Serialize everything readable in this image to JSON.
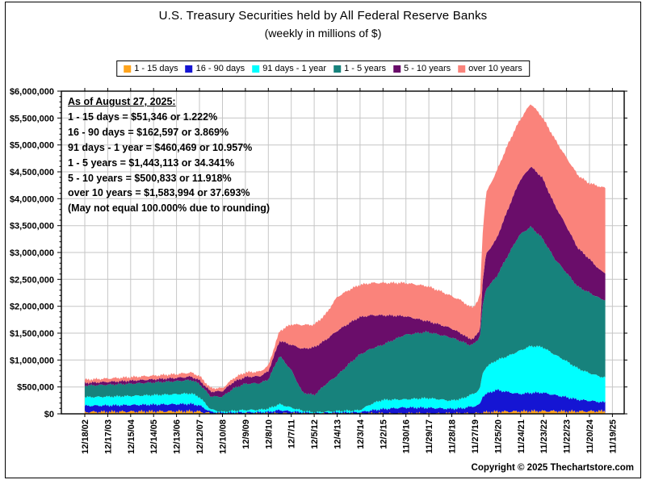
{
  "header": {
    "title": "U.S. Treasury Securities held by All Federal Reserve Banks",
    "subtitle": "(weekly in millions of $)"
  },
  "annotation": {
    "lines": [
      "As of August 27, 2025:",
      "1 - 15 days = $51,346 or 1.222%",
      "16 - 90 days = $162,597 or 3.869%",
      "91 days - 1 year = $460,469 or 10.957%",
      "1 - 5 years = $1,443,113 or 34.341%",
      "5 - 10 years = $500,833 or 11.918%",
      "over 10 years = $1,583,994 or 37.693%",
      "(May not equal 100.000% due to rounding)"
    ]
  },
  "footer": {
    "copyright": "Copyright © 2025 Thechartstore.com"
  },
  "chart_data": {
    "type": "area",
    "stacked": true,
    "title": "U.S. Treasury Securities held by All Federal Reserve Banks",
    "subtitle": "(weekly in millions of $)",
    "as_of": "August 27, 2025",
    "units": "millions of $",
    "grid": true,
    "legend_position": "top",
    "ylim": [
      0,
      6000000
    ],
    "ytick_interval": 500000,
    "ytick_labels": [
      "$6,000,000",
      "$5,500,000",
      "$5,000,000",
      "$4,500,000",
      "$4,000,000",
      "$3,500,000",
      "$3,000,000",
      "$2,500,000",
      "$2,000,000",
      "$1,500,000",
      "$1,000,000",
      "$500,000",
      "$0"
    ],
    "xtick_labels": [
      "12/18/02",
      "12/17/03",
      "12/15/04",
      "12/14/05",
      "12/13/06",
      "12/12/07",
      "12/10/08",
      "12/9/09",
      "12/8/10",
      "12/7/11",
      "12/5/12",
      "12/4/13",
      "12/3/14",
      "12/2/15",
      "11/30/16",
      "11/29/17",
      "11/28/18",
      "11/27/19",
      "11/25/20",
      "11/24/21",
      "11/23/22",
      "11/22/23",
      "11/20/24",
      "11/19/25"
    ],
    "x": [
      2002.96,
      2003.96,
      2004.96,
      2005.96,
      2006.96,
      2007.6,
      2007.96,
      2008.45,
      2008.96,
      2009.45,
      2009.96,
      2010.6,
      2010.96,
      2011.45,
      2011.96,
      2012.45,
      2012.96,
      2013.45,
      2013.96,
      2014.45,
      2014.92,
      2015.45,
      2015.92,
      2016.9,
      2017.9,
      2018.45,
      2018.9,
      2019.45,
      2019.7,
      2019.9,
      2020.1,
      2020.19,
      2020.3,
      2020.45,
      2020.9,
      2021.45,
      2021.9,
      2022.4,
      2022.9,
      2023.45,
      2023.9,
      2024.45,
      2024.89,
      2025.45,
      2025.65
    ],
    "series": [
      {
        "name": "1 - 15 days",
        "color": "#FFA41C",
        "values": [
          35000,
          38000,
          42000,
          45000,
          47000,
          48000,
          42000,
          8000,
          5000,
          5000,
          5000,
          5000,
          5000,
          10000,
          5000,
          3000,
          2000,
          2000,
          2000,
          2000,
          2000,
          3000,
          3000,
          3000,
          3000,
          3000,
          3000,
          5000,
          8000,
          8000,
          10000,
          12000,
          25000,
          30000,
          40000,
          42000,
          45000,
          50000,
          50000,
          50000,
          45000,
          45000,
          48000,
          50000,
          51346
        ]
      },
      {
        "name": "16 - 90 days",
        "color": "#1515D3",
        "values": [
          115000,
          118000,
          122000,
          128000,
          133000,
          138000,
          115000,
          30000,
          15000,
          20000,
          25000,
          25000,
          30000,
          60000,
          40000,
          25000,
          15000,
          20000,
          25000,
          25000,
          28000,
          60000,
          85000,
          115000,
          110000,
          100000,
          90000,
          100000,
          120000,
          130000,
          150000,
          170000,
          300000,
          340000,
          405000,
          360000,
          325000,
          340000,
          345000,
          300000,
          270000,
          220000,
          200000,
          170000,
          162597
        ]
      },
      {
        "name": "91 days - 1 year",
        "color": "#00FFFF",
        "values": [
          160000,
          163000,
          168000,
          176000,
          186000,
          194000,
          155000,
          45000,
          15000,
          30000,
          40000,
          45000,
          60000,
          110000,
          70000,
          30000,
          10000,
          18000,
          25000,
          30000,
          35000,
          120000,
          170000,
          150000,
          180000,
          165000,
          150000,
          180000,
          215000,
          230000,
          270000,
          300000,
          420000,
          500000,
          550000,
          680000,
          800000,
          870000,
          850000,
          750000,
          680000,
          580000,
          520000,
          470000,
          460469
        ]
      },
      {
        "name": "1 - 5 years",
        "color": "#17827C",
        "values": [
          215000,
          222000,
          228000,
          234000,
          242000,
          250000,
          245000,
          240000,
          285000,
          420000,
          490000,
          495000,
          545000,
          900000,
          700000,
          340000,
          320000,
          505000,
          660000,
          860000,
          1030000,
          1030000,
          1020000,
          1200000,
          1230000,
          1200000,
          1180000,
          1050000,
          940000,
          925000,
          950000,
          980000,
          1250000,
          1450000,
          1550000,
          1900000,
          2150000,
          2220000,
          2025000,
          1780000,
          1660000,
          1520000,
          1500000,
          1450000,
          1443113
        ]
      },
      {
        "name": "5 - 10 years",
        "color": "#6A0D6A",
        "values": [
          50000,
          53000,
          57000,
          58000,
          60000,
          62000,
          68000,
          90000,
          100000,
          120000,
          125000,
          130000,
          150000,
          280000,
          470000,
          810000,
          890000,
          825000,
          830000,
          760000,
          700000,
          620000,
          555000,
          350000,
          200000,
          190000,
          175000,
          140000,
          115000,
          110000,
          115000,
          120000,
          450000,
          650000,
          700000,
          870000,
          1000000,
          1120000,
          1125000,
          1000000,
          880000,
          720000,
          640000,
          520000,
          500833
        ]
      },
      {
        "name": "over 10 years",
        "color": "#FA837B",
        "values": [
          60000,
          62000,
          65000,
          68000,
          71000,
          75000,
          78000,
          65000,
          55000,
          70000,
          85000,
          85000,
          105000,
          180000,
          380000,
          445000,
          420000,
          475000,
          630000,
          620000,
          600000,
          600000,
          600000,
          617000,
          650000,
          625000,
          600000,
          615000,
          595000,
          590000,
          605000,
          620000,
          900000,
          1130000,
          1255000,
          1200000,
          1125000,
          1170000,
          1125000,
          1230000,
          1265000,
          1355000,
          1392000,
          1560000,
          1583994
        ]
      }
    ]
  }
}
